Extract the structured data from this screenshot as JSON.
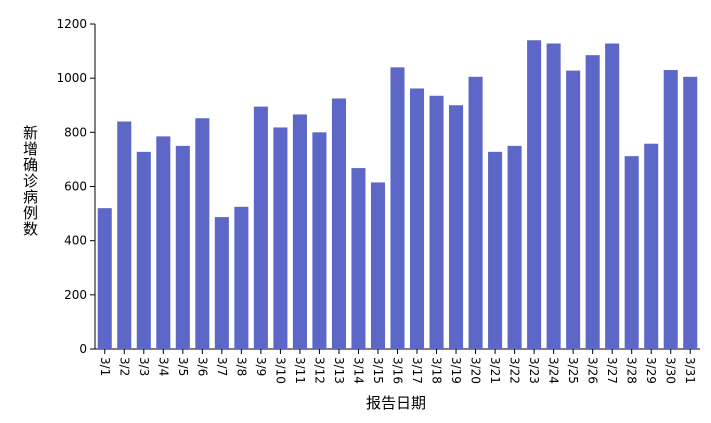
{
  "chart_data": {
    "type": "bar",
    "x_label": "报告日期",
    "y_label": "新增确诊病例数",
    "categories": [
      "3/1",
      "3/2",
      "3/3",
      "3/4",
      "3/5",
      "3/6",
      "3/7",
      "3/8",
      "3/9",
      "3/10",
      "3/11",
      "3/12",
      "3/13",
      "3/14",
      "3/15",
      "3/16",
      "3/17",
      "3/18",
      "3/19",
      "3/20",
      "3/21",
      "3/22",
      "3/23",
      "3/24",
      "3/25",
      "3/26",
      "3/27",
      "3/28",
      "3/29",
      "3/30",
      "3/31"
    ],
    "values": [
      520,
      840,
      728,
      785,
      750,
      852,
      487,
      525,
      895,
      818,
      866,
      800,
      925,
      668,
      615,
      1040,
      962,
      935,
      900,
      1005,
      728,
      750,
      1140,
      1128,
      1028,
      1085,
      1128,
      712,
      758,
      1030,
      1005
    ],
    "color": "#5c67c8",
    "ylim": [
      0,
      1200
    ],
    "yticks": [
      0,
      200,
      400,
      600,
      800,
      1000,
      1200
    ]
  }
}
